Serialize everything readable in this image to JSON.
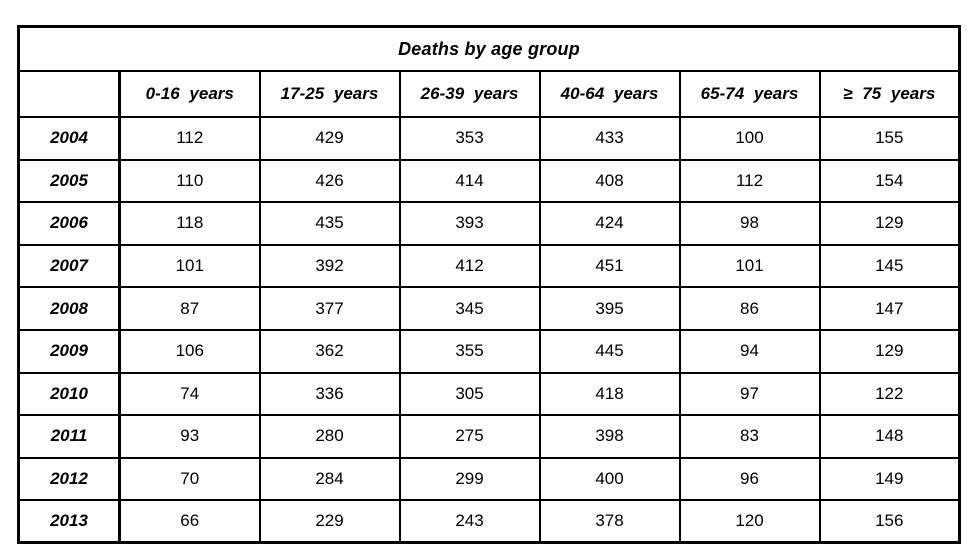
{
  "table": {
    "title": "Deaths by age group",
    "corner_label": "",
    "columns": [
      "0-16 years",
      "17-25 years",
      "26-39 years",
      "40-64 years",
      "65-74 years",
      "≥ 75 years"
    ],
    "rows": [
      {
        "year": "2004",
        "values": [
          "112",
          "429",
          "353",
          "433",
          "100",
          "155"
        ]
      },
      {
        "year": "2005",
        "values": [
          "110",
          "426",
          "414",
          "408",
          "112",
          "154"
        ]
      },
      {
        "year": "2006",
        "values": [
          "118",
          "435",
          "393",
          "424",
          "98",
          "129"
        ]
      },
      {
        "year": "2007",
        "values": [
          "101",
          "392",
          "412",
          "451",
          "101",
          "145"
        ]
      },
      {
        "year": "2008",
        "values": [
          "87",
          "377",
          "345",
          "395",
          "86",
          "147"
        ]
      },
      {
        "year": "2009",
        "values": [
          "106",
          "362",
          "355",
          "445",
          "94",
          "129"
        ]
      },
      {
        "year": "2010",
        "values": [
          "74",
          "336",
          "305",
          "418",
          "97",
          "122"
        ]
      },
      {
        "year": "2011",
        "values": [
          "93",
          "280",
          "275",
          "398",
          "83",
          "148"
        ]
      },
      {
        "year": "2012",
        "values": [
          "70",
          "284",
          "299",
          "400",
          "96",
          "149"
        ]
      },
      {
        "year": "2013",
        "values": [
          "66",
          "229",
          "243",
          "378",
          "120",
          "156"
        ]
      }
    ],
    "colors": {
      "border": "#000000",
      "background": "#ffffff",
      "text": "#000000"
    }
  },
  "chart_data": {
    "type": "table",
    "title": "Deaths by age group",
    "categories": [
      "0-16 years",
      "17-25 years",
      "26-39 years",
      "40-64 years",
      "65-74 years",
      "≥ 75 years"
    ],
    "row_labels": [
      "2004",
      "2005",
      "2006",
      "2007",
      "2008",
      "2009",
      "2010",
      "2011",
      "2012",
      "2013"
    ],
    "series": [
      {
        "name": "2004",
        "values": [
          112,
          429,
          353,
          433,
          100,
          155
        ]
      },
      {
        "name": "2005",
        "values": [
          110,
          426,
          414,
          408,
          112,
          154
        ]
      },
      {
        "name": "2006",
        "values": [
          118,
          435,
          393,
          424,
          98,
          129
        ]
      },
      {
        "name": "2007",
        "values": [
          101,
          392,
          412,
          451,
          101,
          145
        ]
      },
      {
        "name": "2008",
        "values": [
          87,
          377,
          345,
          395,
          86,
          147
        ]
      },
      {
        "name": "2009",
        "values": [
          106,
          362,
          355,
          445,
          94,
          129
        ]
      },
      {
        "name": "2010",
        "values": [
          74,
          336,
          305,
          418,
          97,
          122
        ]
      },
      {
        "name": "2011",
        "values": [
          93,
          280,
          275,
          398,
          83,
          148
        ]
      },
      {
        "name": "2012",
        "values": [
          70,
          284,
          299,
          400,
          96,
          149
        ]
      },
      {
        "name": "2013",
        "values": [
          66,
          229,
          243,
          378,
          120,
          156
        ]
      }
    ]
  }
}
